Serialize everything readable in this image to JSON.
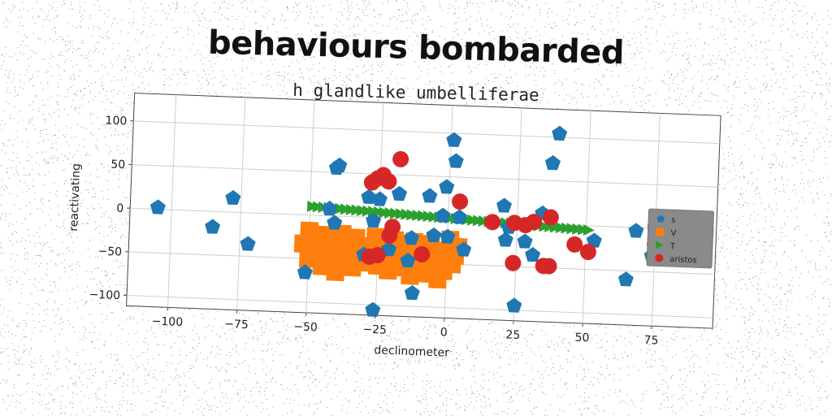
{
  "title": "behaviours bombarded",
  "subtitle": "h glandlike umbelliferae",
  "chart_data": {
    "type": "scatter",
    "xlabel": "declinometer",
    "ylabel": "reactivating",
    "xlim": [
      -115,
      97
    ],
    "ylim": [
      -112,
      132
    ],
    "xticks": [
      -100,
      -75,
      -50,
      -25,
      0,
      25,
      50,
      75
    ],
    "yticks": [
      -100,
      -50,
      0,
      50,
      100
    ],
    "grid": true,
    "legend_position": "right",
    "series": [
      {
        "name": "s",
        "marker": "pentagon",
        "color": "#1f77b4",
        "points": [
          [
            -105,
            2
          ],
          [
            -85,
            -18
          ],
          [
            -78,
            16
          ],
          [
            -72,
            -36
          ],
          [
            -51,
            -66
          ],
          [
            -43,
            8
          ],
          [
            -41,
            -8
          ],
          [
            -41,
            55
          ],
          [
            -40,
            58
          ],
          [
            -30,
            -43
          ],
          [
            -29,
            23
          ],
          [
            -27,
            -4
          ],
          [
            -26,
            -106
          ],
          [
            -25,
            21
          ],
          [
            -21,
            -36
          ],
          [
            -18,
            28
          ],
          [
            -14,
            -48
          ],
          [
            -13,
            -22
          ],
          [
            -12,
            -85
          ],
          [
            -7,
            27
          ],
          [
            -5,
            -18
          ],
          [
            -2,
            5
          ],
          [
            -1,
            38
          ],
          [
            0,
            -19
          ],
          [
            1,
            92
          ],
          [
            2,
            68
          ],
          [
            4,
            4
          ],
          [
            6,
            -33
          ],
          [
            20,
            19
          ],
          [
            21,
            -20
          ],
          [
            22,
            -5
          ],
          [
            25,
            -95
          ],
          [
            28,
            -21
          ],
          [
            31,
            -36
          ],
          [
            34,
            12
          ],
          [
            37,
            70
          ],
          [
            39,
            104
          ],
          [
            53,
            -17
          ],
          [
            65,
            -60
          ],
          [
            68,
            -4
          ],
          [
            74,
            -32
          ],
          [
            85,
            -10
          ]
        ]
      },
      {
        "name": "V",
        "marker": "square",
        "color": "#ff7f0e",
        "points": [
          [
            -52,
            -33
          ],
          [
            -50,
            -18
          ],
          [
            -50,
            -50
          ],
          [
            -48,
            -27
          ],
          [
            -46,
            -40
          ],
          [
            -45,
            -58
          ],
          [
            -44,
            -22
          ],
          [
            -43,
            -33
          ],
          [
            -42,
            -46
          ],
          [
            -41,
            -55
          ],
          [
            -40,
            -28
          ],
          [
            -40,
            -64
          ],
          [
            -39,
            -38
          ],
          [
            -38,
            -20
          ],
          [
            -37,
            -50
          ],
          [
            -36,
            -44
          ],
          [
            -35,
            -30
          ],
          [
            -34,
            -58
          ],
          [
            -33,
            -24
          ],
          [
            -32,
            -40
          ],
          [
            -31,
            -52
          ],
          [
            -28,
            -33
          ],
          [
            -27,
            -45
          ],
          [
            -26,
            -22
          ],
          [
            -25,
            -55
          ],
          [
            -24,
            -36
          ],
          [
            -23,
            -28
          ],
          [
            -22,
            -48
          ],
          [
            -21,
            -60
          ],
          [
            -20,
            -38
          ],
          [
            -19,
            -25
          ],
          [
            -18,
            -50
          ],
          [
            -17,
            -42
          ],
          [
            -16,
            -30
          ],
          [
            -15,
            -56
          ],
          [
            -14,
            -40
          ],
          [
            -13,
            -65
          ],
          [
            -12,
            -26
          ],
          [
            -11,
            -46
          ],
          [
            -10,
            -55
          ],
          [
            -9,
            -34
          ],
          [
            -8,
            -62
          ],
          [
            -7,
            -44
          ],
          [
            -6,
            -28
          ],
          [
            -5,
            -52
          ],
          [
            -4,
            -38
          ],
          [
            -3,
            -68
          ],
          [
            -2,
            -46
          ],
          [
            -1,
            -58
          ],
          [
            0,
            -35
          ],
          [
            1,
            -22
          ],
          [
            2,
            -50
          ],
          [
            3,
            -40
          ],
          [
            4,
            -30
          ]
        ]
      },
      {
        "name": "T",
        "marker": "triangle-right",
        "color": "#2ca02c",
        "points": [
          [
            -49,
            10
          ],
          [
            -47,
            9.7
          ],
          [
            -45,
            9.4
          ],
          [
            -43,
            9.1
          ],
          [
            -41,
            8.8
          ],
          [
            -39,
            8.5
          ],
          [
            -37,
            8.2
          ],
          [
            -35,
            7.9
          ],
          [
            -33,
            7.6
          ],
          [
            -31,
            7.3
          ],
          [
            -29,
            7
          ],
          [
            -27,
            6.7
          ],
          [
            -25,
            6.4
          ],
          [
            -23,
            6.1
          ],
          [
            -21,
            5.8
          ],
          [
            -19,
            5.5
          ],
          [
            -17,
            5.2
          ],
          [
            -15,
            4.9
          ],
          [
            -13,
            4.6
          ],
          [
            -11,
            4.3
          ],
          [
            -9,
            4
          ],
          [
            -7,
            3.7
          ],
          [
            -5,
            3.4
          ],
          [
            -3,
            3.1
          ],
          [
            -1,
            2.8
          ],
          [
            1,
            2.5
          ],
          [
            3,
            2.2
          ],
          [
            5,
            1.9
          ],
          [
            7,
            1.6
          ],
          [
            9,
            1.3
          ],
          [
            11,
            1
          ],
          [
            13,
            0.7
          ],
          [
            15,
            0.4
          ],
          [
            17,
            0.1
          ],
          [
            19,
            -0.2
          ],
          [
            21,
            -0.5
          ],
          [
            23,
            -0.8
          ],
          [
            25,
            -1.1
          ],
          [
            27,
            -1.4
          ],
          [
            29,
            -1.7
          ],
          [
            31,
            -2
          ],
          [
            33,
            -2.3
          ],
          [
            35,
            -2.6
          ],
          [
            37,
            -2.9
          ],
          [
            39,
            -3.2
          ],
          [
            41,
            -3.5
          ],
          [
            43,
            -3.8
          ],
          [
            45,
            -4.1
          ],
          [
            47,
            -4.4
          ],
          [
            49,
            -4.7
          ],
          [
            51,
            -5
          ]
        ]
      },
      {
        "name": "aristos",
        "marker": "circle",
        "color": "#d62728",
        "points": [
          [
            -28,
            40
          ],
          [
            -26,
            45
          ],
          [
            -24,
            49
          ],
          [
            -22,
            42
          ],
          [
            -18,
            68
          ],
          [
            -28,
            -45
          ],
          [
            -25,
            -43
          ],
          [
            -21,
            -20
          ],
          [
            -20,
            -10
          ],
          [
            -9,
            -40
          ],
          [
            4,
            22
          ],
          [
            16,
            0
          ],
          [
            24,
            0
          ],
          [
            28,
            -2
          ],
          [
            31,
            2
          ],
          [
            37,
            8
          ],
          [
            24,
            -46
          ],
          [
            35,
            -48
          ],
          [
            37,
            -48
          ],
          [
            46,
            -22
          ],
          [
            51,
            -30
          ],
          [
            75,
            2
          ],
          [
            75,
            -18
          ]
        ]
      }
    ]
  }
}
